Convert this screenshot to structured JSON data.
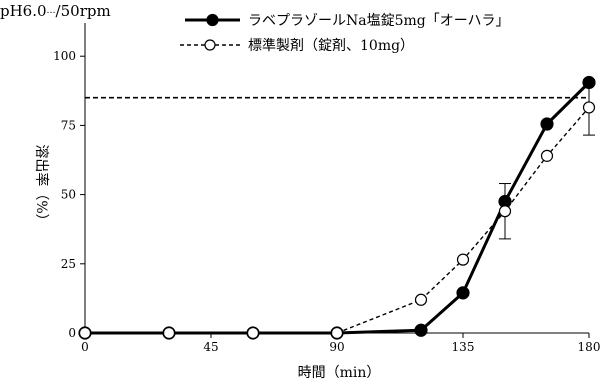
{
  "chart_data": {
    "type": "line",
    "condition_label": "pH6.0",
    "condition_label_suffix": "/50rpm",
    "xlabel": "時間（min）",
    "ylabel": "溶出率（%）",
    "xlim": [
      0,
      180
    ],
    "ylim": [
      0,
      112
    ],
    "xticks": [
      0,
      45,
      90,
      135,
      180
    ],
    "yticks": [
      0,
      25,
      50,
      75,
      100
    ],
    "reference_line": {
      "y": 85,
      "style": "dashed"
    },
    "legend_position": "top",
    "series": [
      {
        "name": "ラベプラゾールNa塩錠5mg「オーハラ」",
        "style": "solid",
        "marker": "filled-circle",
        "color": "#000000",
        "x": [
          0,
          30,
          60,
          90,
          120,
          135,
          150,
          165,
          180
        ],
        "y": [
          0,
          0,
          0,
          0,
          1,
          14.5,
          47.5,
          75.5,
          90.5
        ]
      },
      {
        "name": "標準製剤（錠剤、10mg）",
        "style": "dashed",
        "marker": "open-circle",
        "color": "#000000",
        "x": [
          0,
          30,
          60,
          90,
          120,
          135,
          150,
          165,
          180
        ],
        "y": [
          0,
          0,
          0,
          0,
          12,
          26.5,
          44,
          64,
          81.5
        ],
        "error": [
          0,
          0,
          0,
          0,
          0,
          0,
          10,
          0,
          10
        ]
      }
    ]
  }
}
